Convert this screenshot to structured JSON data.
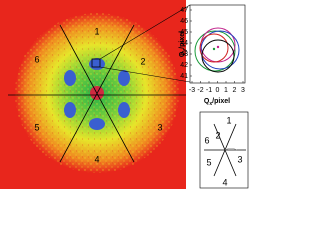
{
  "main_image": {
    "sector_labels": [
      "1",
      "2",
      "3",
      "4",
      "5",
      "6"
    ]
  },
  "inset_plot": {
    "xticks": [
      -3,
      -2,
      -1,
      0,
      1,
      2,
      3
    ],
    "yticks": [
      41,
      42,
      43,
      44,
      45,
      46,
      47
    ],
    "xlabel": {
      "symbol": "Q",
      "sub": "x",
      "unit": "/pixel"
    },
    "ylabel": {
      "symbol": "Q",
      "sub": "y",
      "unit": "/pixel"
    }
  },
  "sector_key": {
    "labels": [
      "1",
      "2",
      "3",
      "4",
      "5",
      "6"
    ]
  }
}
